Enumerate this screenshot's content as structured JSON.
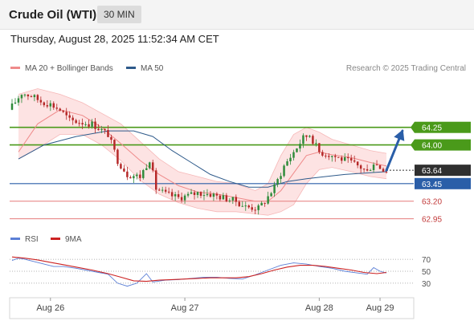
{
  "header": {
    "title": "Crude Oil (WTI)",
    "interval": "30 MIN"
  },
  "timestamp": "Thursday, August 28, 2025 11:52:34 AM CET",
  "legend": {
    "bb": {
      "label": "MA 20 + Bollinger Bands",
      "color": "#ef8a8a"
    },
    "ma50": {
      "label": "MA 50",
      "color": "#2e5a8a"
    },
    "copyright": "Research © 2025 Trading Central"
  },
  "rsi_legend": {
    "rsi": {
      "label": "RSI",
      "color": "#5b7fd6"
    },
    "ma9": {
      "label": "9MA",
      "color": "#cc2222"
    }
  },
  "colors": {
    "up": "#2e8b3a",
    "down": "#b52828",
    "resistance": "#4a9a1a",
    "support": "#2a5ea8",
    "pivot_support": "#e88a8a",
    "current": "#333333",
    "band_fill": "#fde0e0",
    "arrow": "#2a5ea8"
  },
  "chart_data": [
    {
      "type": "candlestick",
      "name": "price",
      "y_range": [
        62.82,
        64.92
      ],
      "x_labels": [
        {
          "label": "Aug 26",
          "index": 12
        },
        {
          "label": "Aug 27",
          "index": 54
        },
        {
          "label": "Aug 28",
          "index": 96
        },
        {
          "label": "Aug 29",
          "index": 115
        }
      ],
      "bar_count": 118,
      "close_path": [
        [
          0,
          64.55
        ],
        [
          3,
          64.74
        ],
        [
          6,
          64.7
        ],
        [
          9,
          64.62
        ],
        [
          12,
          64.58
        ],
        [
          15,
          64.5
        ],
        [
          18,
          64.35
        ],
        [
          22,
          64.32
        ],
        [
          25,
          64.3
        ],
        [
          30,
          64.15
        ],
        [
          33,
          63.78
        ],
        [
          36,
          63.58
        ],
        [
          40,
          63.55
        ],
        [
          43,
          63.8
        ],
        [
          45,
          63.38
        ],
        [
          48,
          63.3
        ],
        [
          52,
          63.25
        ],
        [
          55,
          63.28
        ],
        [
          58,
          63.32
        ],
        [
          62,
          63.3
        ],
        [
          66,
          63.25
        ],
        [
          70,
          63.2
        ],
        [
          73,
          63.12
        ],
        [
          77,
          63.1
        ],
        [
          79,
          63.2
        ],
        [
          82,
          63.4
        ],
        [
          85,
          63.7
        ],
        [
          88,
          63.9
        ],
        [
          91,
          64.1
        ],
        [
          93,
          64.15
        ],
        [
          96,
          63.9
        ],
        [
          100,
          63.85
        ],
        [
          103,
          63.8
        ],
        [
          106,
          63.75
        ],
        [
          109,
          63.68
        ],
        [
          111,
          63.62
        ],
        [
          113,
          63.75
        ],
        [
          115,
          63.68
        ],
        [
          117,
          63.64
        ]
      ],
      "bollinger": {
        "upper": [
          [
            2,
            64.72
          ],
          [
            8,
            64.8
          ],
          [
            15,
            64.72
          ],
          [
            22,
            64.6
          ],
          [
            28,
            64.45
          ],
          [
            34,
            64.3
          ],
          [
            40,
            64.05
          ],
          [
            46,
            63.8
          ],
          [
            52,
            63.62
          ],
          [
            58,
            63.55
          ],
          [
            64,
            63.48
          ],
          [
            70,
            63.45
          ],
          [
            76,
            63.35
          ],
          [
            80,
            63.45
          ],
          [
            84,
            63.85
          ],
          [
            88,
            64.15
          ],
          [
            92,
            64.25
          ],
          [
            96,
            64.18
          ],
          [
            100,
            64.08
          ],
          [
            106,
            64.0
          ],
          [
            112,
            63.92
          ],
          [
            117,
            63.88
          ]
        ],
        "middle": [
          [
            2,
            63.9
          ],
          [
            8,
            64.3
          ],
          [
            15,
            64.5
          ],
          [
            22,
            64.42
          ],
          [
            28,
            64.25
          ],
          [
            34,
            64.02
          ],
          [
            40,
            63.78
          ],
          [
            46,
            63.58
          ],
          [
            52,
            63.42
          ],
          [
            58,
            63.33
          ],
          [
            64,
            63.3
          ],
          [
            70,
            63.25
          ],
          [
            76,
            63.2
          ],
          [
            80,
            63.2
          ],
          [
            84,
            63.35
          ],
          [
            88,
            63.6
          ],
          [
            92,
            63.85
          ],
          [
            96,
            63.9
          ],
          [
            100,
            63.86
          ],
          [
            106,
            63.82
          ],
          [
            112,
            63.75
          ],
          [
            117,
            63.7
          ]
        ],
        "lower": [
          [
            2,
            63.8
          ],
          [
            8,
            63.95
          ],
          [
            15,
            64.15
          ],
          [
            22,
            64.15
          ],
          [
            28,
            64.0
          ],
          [
            34,
            63.78
          ],
          [
            40,
            63.5
          ],
          [
            46,
            63.3
          ],
          [
            52,
            63.18
          ],
          [
            58,
            63.1
          ],
          [
            64,
            63.05
          ],
          [
            70,
            63.05
          ],
          [
            76,
            63.02
          ],
          [
            80,
            63.0
          ],
          [
            84,
            63.05
          ],
          [
            88,
            63.15
          ],
          [
            92,
            63.45
          ],
          [
            96,
            63.65
          ],
          [
            100,
            63.68
          ],
          [
            106,
            63.62
          ],
          [
            112,
            63.55
          ],
          [
            117,
            63.52
          ]
        ]
      },
      "ma50": [
        [
          2,
          63.8
        ],
        [
          10,
          64.0
        ],
        [
          20,
          64.12
        ],
        [
          30,
          64.2
        ],
        [
          38,
          64.2
        ],
        [
          44,
          64.12
        ],
        [
          50,
          63.92
        ],
        [
          56,
          63.75
        ],
        [
          62,
          63.58
        ],
        [
          68,
          63.48
        ],
        [
          74,
          63.4
        ],
        [
          80,
          63.4
        ],
        [
          86,
          63.48
        ],
        [
          92,
          63.52
        ],
        [
          98,
          63.55
        ],
        [
          104,
          63.58
        ],
        [
          110,
          63.6
        ],
        [
          117,
          63.62
        ]
      ],
      "levels": [
        {
          "value": 64.25,
          "label": "64.25",
          "kind": "resistance"
        },
        {
          "value": 64.0,
          "label": "64.00",
          "kind": "resistance"
        },
        {
          "value": 63.64,
          "label": "63.64",
          "kind": "current"
        },
        {
          "value": 63.45,
          "label": "63.45",
          "kind": "support"
        },
        {
          "value": 63.2,
          "label": "63.20",
          "kind": "pivot_support"
        },
        {
          "value": 62.95,
          "label": "62.95",
          "kind": "pivot_support"
        }
      ],
      "forecast_arrow": {
        "from": [
          117,
          63.64
        ],
        "to": [
          122,
          64.2
        ]
      }
    },
    {
      "type": "line",
      "name": "rsi",
      "y_range": [
        15,
        85
      ],
      "ticks": [
        {
          "value": 70,
          "label": "70"
        },
        {
          "value": 50,
          "label": "50"
        },
        {
          "value": 30,
          "label": "30"
        }
      ],
      "series": [
        {
          "name": "RSI",
          "values": [
            [
              0,
              68
            ],
            [
              2,
              72
            ],
            [
              4,
              70
            ],
            [
              7,
              66
            ],
            [
              10,
              62
            ],
            [
              13,
              58
            ],
            [
              16,
              58
            ],
            [
              20,
              55
            ],
            [
              25,
              50
            ],
            [
              30,
              45
            ],
            [
              33,
              30
            ],
            [
              36,
              25
            ],
            [
              39,
              30
            ],
            [
              42,
              46
            ],
            [
              44,
              32
            ],
            [
              48,
              35
            ],
            [
              52,
              36
            ],
            [
              56,
              38
            ],
            [
              60,
              40
            ],
            [
              64,
              40
            ],
            [
              68,
              38
            ],
            [
              72,
              37
            ],
            [
              76,
              44
            ],
            [
              80,
              52
            ],
            [
              84,
              60
            ],
            [
              88,
              64
            ],
            [
              92,
              62
            ],
            [
              96,
              58
            ],
            [
              100,
              55
            ],
            [
              104,
              50
            ],
            [
              108,
              47
            ],
            [
              111,
              45
            ],
            [
              113,
              56
            ],
            [
              115,
              50
            ],
            [
              117,
              47
            ]
          ]
        },
        {
          "name": "9MA",
          "values": [
            [
              0,
              74
            ],
            [
              4,
              72
            ],
            [
              8,
              69
            ],
            [
              12,
              65
            ],
            [
              16,
              61
            ],
            [
              20,
              57
            ],
            [
              25,
              52
            ],
            [
              30,
              46
            ],
            [
              34,
              40
            ],
            [
              38,
              34
            ],
            [
              42,
              33
            ],
            [
              46,
              35
            ],
            [
              50,
              36
            ],
            [
              54,
              37
            ],
            [
              58,
              38
            ],
            [
              62,
              39
            ],
            [
              66,
              39
            ],
            [
              70,
              39
            ],
            [
              74,
              41
            ],
            [
              78,
              46
            ],
            [
              82,
              52
            ],
            [
              86,
              57
            ],
            [
              90,
              60
            ],
            [
              94,
              60
            ],
            [
              98,
              58
            ],
            [
              102,
              55
            ],
            [
              106,
              52
            ],
            [
              110,
              48
            ],
            [
              114,
              46
            ],
            [
              117,
              48
            ]
          ]
        }
      ]
    }
  ]
}
